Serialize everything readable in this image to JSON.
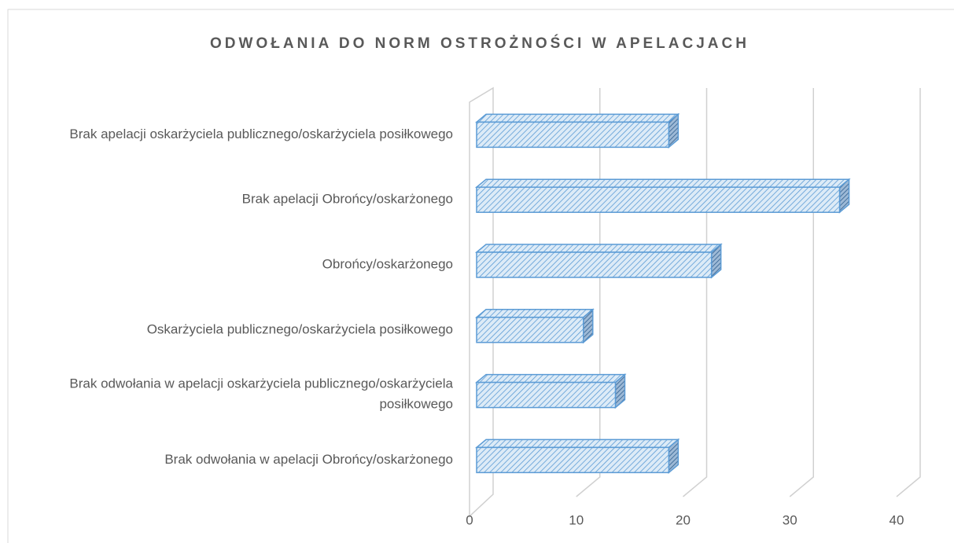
{
  "chart_data": {
    "type": "bar3d_horizontal",
    "title": "ODWOŁANIA DO NORM OSTROŻNOŚCI W APELACJACH",
    "categories": [
      "Brak  apelacji oskarżyciela publicznego/oskarżyciela posiłkowego",
      "Brak apelacji Obrońcy/oskarżonego",
      "Obrońcy/oskarżonego",
      "Oskarżyciela publicznego/oskarżyciela posiłkowego",
      "Brak odwołania w apelacji oskarżyciela publicznego/oskarżyciela posiłkowego",
      "Brak odwołania w apelacji Obrońcy/oskarżonego"
    ],
    "values": [
      18,
      34,
      22,
      10,
      13,
      18
    ],
    "color": "#5b9bd5",
    "xlim": [
      0,
      40
    ],
    "xticks": [
      0,
      10,
      20,
      30,
      40
    ],
    "grid": true
  }
}
